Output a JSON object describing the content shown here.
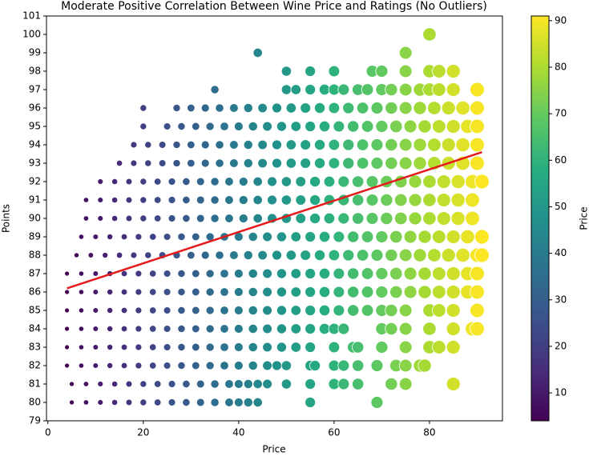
{
  "chart_data": {
    "type": "scatter",
    "title": "Moderate Positive Correlation Between Wine Price and Ratings (No Outliers)",
    "xlabel": "Price",
    "ylabel": "Points",
    "xlim": [
      -0.3,
      95.3
    ],
    "ylim": [
      79,
      101
    ],
    "xticks": [
      0,
      20,
      40,
      60,
      80
    ],
    "yticks": [
      79,
      80,
      81,
      82,
      83,
      84,
      85,
      86,
      87,
      88,
      89,
      90,
      91,
      92,
      93,
      94,
      95,
      96,
      97,
      98,
      99,
      100,
      101
    ],
    "colormap": "viridis",
    "rows": [
      {
        "y": 80,
        "x": [
          5,
          8,
          11,
          14,
          17,
          20,
          23,
          26,
          29,
          32,
          35,
          38,
          40,
          42,
          44,
          55,
          69
        ]
      },
      {
        "y": 81,
        "x": [
          5,
          8,
          11,
          14,
          17,
          20,
          23,
          26,
          29,
          32,
          35,
          38,
          40,
          42,
          44,
          46,
          50,
          55,
          60,
          62,
          65,
          72,
          75,
          85
        ]
      },
      {
        "y": 82,
        "x": [
          4,
          7,
          10,
          13,
          16,
          19,
          22,
          25,
          28,
          31,
          34,
          37,
          40,
          43,
          46,
          48,
          50,
          55,
          56,
          60,
          62,
          65,
          69,
          73,
          75,
          78,
          79
        ]
      },
      {
        "y": 83,
        "x": [
          4,
          7,
          10,
          13,
          16,
          19,
          22,
          25,
          28,
          31,
          34,
          37,
          40,
          43,
          46,
          49,
          52,
          55,
          60,
          64,
          65,
          70,
          75,
          80,
          82,
          85
        ]
      },
      {
        "y": 84,
        "x": [
          4,
          7,
          10,
          13,
          16,
          19,
          22,
          25,
          28,
          31,
          34,
          37,
          40,
          43,
          46,
          49,
          52,
          55,
          58,
          60,
          62,
          70,
          72,
          75,
          80,
          85,
          89,
          90
        ]
      },
      {
        "y": 85,
        "x": [
          4,
          7,
          10,
          13,
          16,
          19,
          22,
          25,
          28,
          31,
          34,
          37,
          40,
          43,
          46,
          49,
          52,
          55,
          58,
          61,
          64,
          67,
          70,
          72,
          75,
          80,
          82,
          85,
          90
        ]
      },
      {
        "y": 86,
        "x": [
          4,
          7,
          10,
          13,
          16,
          19,
          22,
          25,
          28,
          31,
          34,
          37,
          40,
          43,
          46,
          49,
          52,
          55,
          58,
          61,
          64,
          67,
          70,
          73,
          76,
          79,
          82,
          85,
          88,
          90
        ]
      },
      {
        "y": 87,
        "x": [
          4,
          7,
          10,
          13,
          16,
          19,
          22,
          25,
          28,
          31,
          34,
          37,
          40,
          43,
          46,
          49,
          52,
          55,
          58,
          61,
          64,
          67,
          70,
          73,
          76,
          79,
          82,
          85,
          88,
          90
        ]
      },
      {
        "y": 88,
        "x": [
          6,
          9,
          12,
          15,
          18,
          21,
          24,
          27,
          30,
          33,
          36,
          39,
          42,
          45,
          48,
          51,
          54,
          57,
          60,
          63,
          66,
          69,
          72,
          75,
          78,
          81,
          84,
          87,
          90,
          91
        ]
      },
      {
        "y": 89,
        "x": [
          7,
          10,
          13,
          16,
          19,
          22,
          25,
          28,
          31,
          34,
          37,
          40,
          43,
          46,
          49,
          52,
          55,
          58,
          61,
          64,
          67,
          70,
          73,
          76,
          79,
          82,
          85,
          88,
          91
        ]
      },
      {
        "y": 90,
        "x": [
          8,
          11,
          14,
          17,
          20,
          23,
          26,
          29,
          32,
          35,
          38,
          41,
          44,
          47,
          50,
          53,
          56,
          59,
          62,
          65,
          68,
          71,
          74,
          77,
          80,
          83,
          86,
          89
        ]
      },
      {
        "y": 91,
        "x": [
          8,
          11,
          14,
          17,
          20,
          23,
          26,
          29,
          32,
          35,
          38,
          41,
          44,
          47,
          50,
          53,
          56,
          59,
          62,
          65,
          68,
          71,
          74,
          77,
          80,
          83,
          86,
          89
        ]
      },
      {
        "y": 92,
        "x": [
          11,
          14,
          17,
          20,
          23,
          26,
          29,
          32,
          35,
          38,
          41,
          44,
          47,
          50,
          53,
          56,
          59,
          62,
          65,
          68,
          71,
          74,
          77,
          80,
          83,
          86,
          89,
          91
        ]
      },
      {
        "y": 93,
        "x": [
          15,
          18,
          21,
          24,
          27,
          30,
          33,
          36,
          39,
          42,
          45,
          48,
          51,
          54,
          57,
          60,
          63,
          66,
          69,
          72,
          75,
          78,
          81,
          84,
          87,
          90
        ]
      },
      {
        "y": 94,
        "x": [
          18,
          21,
          24,
          27,
          30,
          33,
          36,
          39,
          42,
          45,
          48,
          51,
          54,
          57,
          60,
          63,
          66,
          69,
          72,
          75,
          78,
          81,
          84,
          87,
          90
        ]
      },
      {
        "y": 95,
        "x": [
          20,
          25,
          28,
          31,
          34,
          37,
          40,
          43,
          46,
          49,
          52,
          55,
          58,
          61,
          64,
          67,
          70,
          73,
          76,
          79,
          82,
          85,
          88,
          90
        ]
      },
      {
        "y": 96,
        "x": [
          20,
          27,
          30,
          33,
          36,
          39,
          42,
          45,
          48,
          51,
          54,
          57,
          60,
          63,
          66,
          69,
          72,
          75,
          78,
          81,
          84,
          87,
          90
        ]
      },
      {
        "y": 97,
        "x": [
          35,
          50,
          52,
          55,
          58,
          60,
          62,
          65,
          67,
          70,
          72,
          75,
          78,
          80,
          82,
          85,
          90
        ]
      },
      {
        "y": 98,
        "x": [
          50,
          55,
          60,
          68,
          70,
          75,
          80,
          82,
          85
        ]
      },
      {
        "y": 99,
        "x": [
          44,
          75
        ]
      },
      {
        "y": 100,
        "x": [
          80
        ]
      }
    ],
    "trend": {
      "color": "#e41a1c",
      "x": [
        4,
        91
      ],
      "y": [
        86.2,
        93.6
      ]
    },
    "colorbar": {
      "label": "Price",
      "lim": [
        4,
        91
      ],
      "ticks": [
        10,
        20,
        30,
        40,
        50,
        60,
        70,
        80,
        90
      ]
    }
  }
}
